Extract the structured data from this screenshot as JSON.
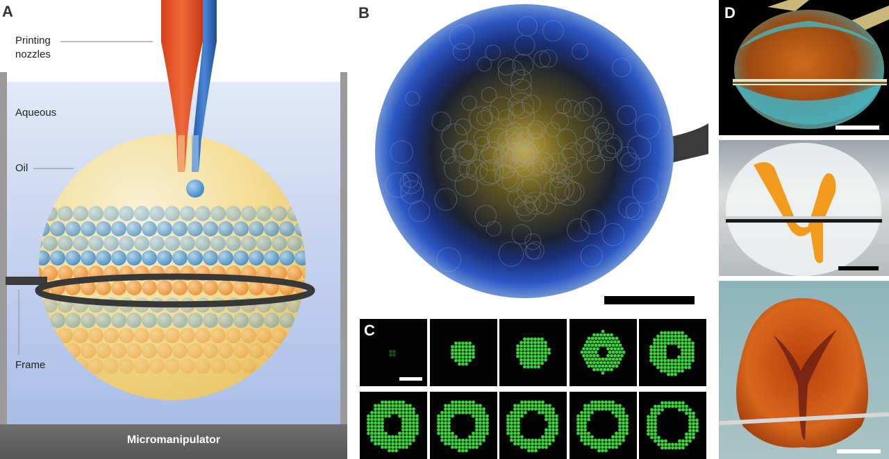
{
  "panels": {
    "a": {
      "letter": "A",
      "labels": {
        "printing_nozzles_line1": "Printing",
        "printing_nozzles_line2": "nozzles",
        "aqueous": "Aqueous",
        "oil": "Oil",
        "frame": "Frame",
        "micromanipulator": "Micromanipulator"
      }
    },
    "b": {
      "letter": "B"
    },
    "c": {
      "letter": "C",
      "time_series_frames": 10
    },
    "d": {
      "letter": "D"
    }
  },
  "colors": {
    "nozzle_orange": "#e8522a",
    "nozzle_blue": "#2f6bbf",
    "aqueous_blue": "#c7d4ee",
    "oil_yellow": "#f5dc8c",
    "droplet_blue": "#5aa2d8",
    "droplet_orange": "#f0a04a",
    "fluorescence_green": "#3ad43a"
  }
}
